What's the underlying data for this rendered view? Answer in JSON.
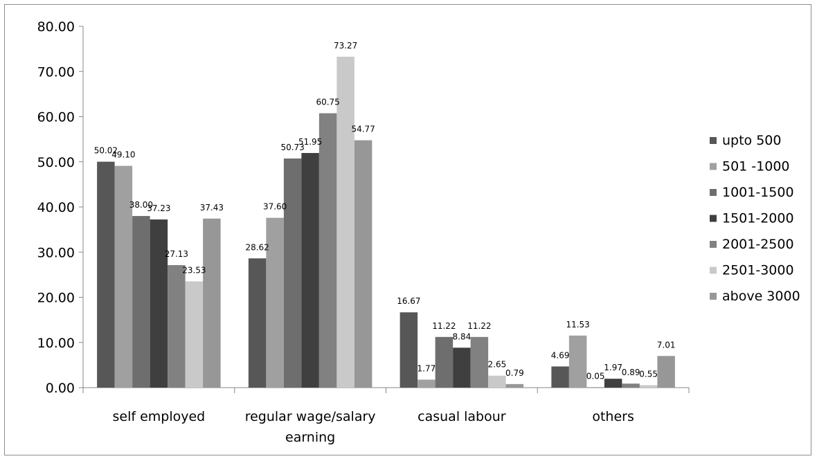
{
  "chart_data": {
    "type": "bar",
    "categories": [
      [
        "self employed"
      ],
      [
        "regular wage/salary",
        "earning"
      ],
      [
        "casual labour"
      ],
      [
        "others"
      ]
    ],
    "ylim": [
      0,
      80
    ],
    "yticks": [
      "0.00",
      "10.00",
      "20.00",
      "30.00",
      "40.00",
      "50.00",
      "60.00",
      "70.00",
      "80.00"
    ],
    "grid": false,
    "legend_position": "right",
    "series": [
      {
        "name": "upto 500",
        "color": "#575757",
        "values": [
          50.02,
          28.62,
          16.67,
          4.69
        ],
        "labels": [
          "50.02",
          "28.62",
          "16.67",
          "4.69"
        ]
      },
      {
        "name": "501 -1000",
        "color": "#a0a0a0",
        "values": [
          49.1,
          37.6,
          1.77,
          11.53
        ],
        "labels": [
          "49.10",
          "37.60",
          "1.77",
          "11.53"
        ]
      },
      {
        "name": "1001-1500",
        "color": "#6e6e6e",
        "values": [
          38.0,
          50.73,
          11.22,
          0.05
        ],
        "labels": [
          "38.00",
          "50.73",
          "11.22",
          "0.05"
        ]
      },
      {
        "name": "1501-2000",
        "color": "#3f3f3f",
        "values": [
          37.23,
          51.95,
          8.84,
          1.97
        ],
        "labels": [
          "37.23",
          "51.95",
          "8.84",
          "1.97"
        ]
      },
      {
        "name": "2001-2500",
        "color": "#818181",
        "values": [
          27.13,
          60.75,
          11.22,
          0.89
        ],
        "labels": [
          "27.13",
          "60.75",
          "11.22",
          "0.89"
        ]
      },
      {
        "name": "2501-3000",
        "color": "#c9c9c9",
        "values": [
          23.53,
          73.27,
          2.65,
          0.55
        ],
        "labels": [
          "23.53",
          "73.27",
          "2.65",
          "0.55"
        ]
      },
      {
        "name": "above 3000",
        "color": "#979797",
        "values": [
          37.43,
          54.77,
          0.79,
          7.01
        ],
        "labels": [
          "37.43",
          "54.77",
          "0.79",
          "7.01"
        ]
      }
    ]
  }
}
